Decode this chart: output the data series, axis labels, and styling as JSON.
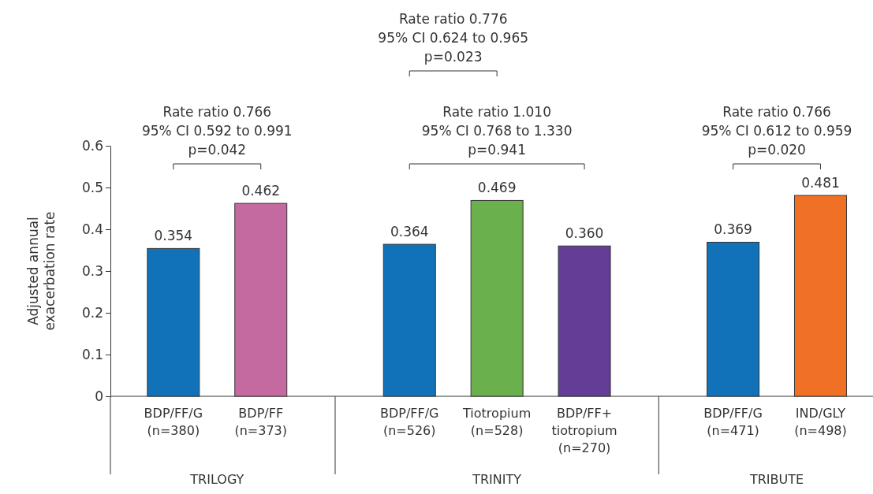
{
  "chart_data": {
    "type": "bar",
    "ylabel": "Adjusted annual\nexacerbation rate",
    "categories": [
      "BDP/FF/G\n(n=380)",
      "BDP/FF\n(n=373)",
      "BDP/FF/G\n(n=526)",
      "Tiotropium\n(n=528)",
      "BDP/FF+\ntiotropium\n(n=270)",
      "BDP/FF/G\n(n=471)",
      "IND/GLY\n(n=498)"
    ],
    "values": [
      0.354,
      0.462,
      0.364,
      0.469,
      0.36,
      0.369,
      0.481
    ],
    "colors": [
      "#1172ba",
      "#c46aa0",
      "#1172ba",
      "#6ab04c",
      "#633d96",
      "#1172ba",
      "#f07126"
    ],
    "ylim": [
      0,
      0.6
    ],
    "yticks": [
      0,
      0.1,
      0.2,
      0.3,
      0.4,
      0.5,
      0.6
    ],
    "value_labels": [
      "0.354",
      "0.462",
      "0.364",
      "0.469",
      "0.360",
      "0.369",
      "0.481"
    ],
    "annotations": [
      "Rate ratio 0.776\n95% CI 0.624 to 0.965\np=0.023",
      "Rate ratio 0.766\n95% CI 0.592 to 0.991\np=0.042",
      "Rate ratio 1.010\n95% CI 0.768 to 1.330\np=0.941",
      "Rate ratio 0.766\n95% CI 0.612 to 0.959\np=0.020",
      "TRILOGY",
      "TRINITY",
      "TRIBUTE"
    ]
  }
}
